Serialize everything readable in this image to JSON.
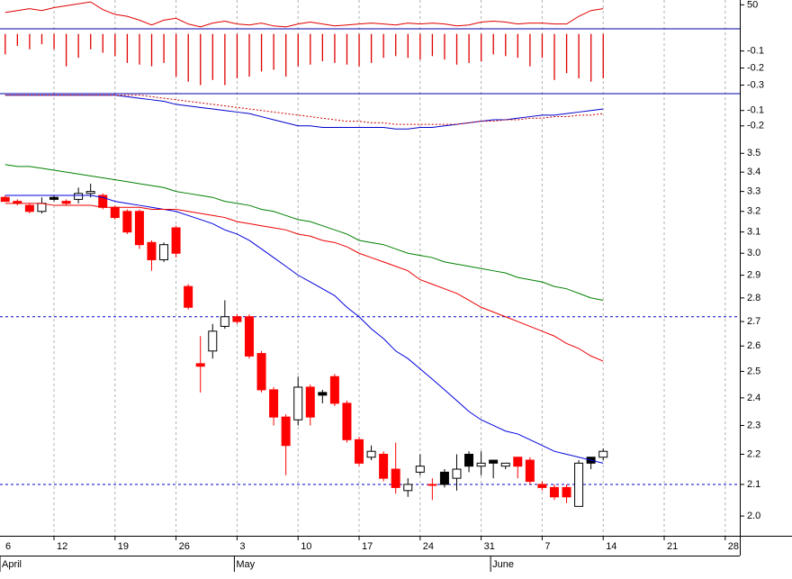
{
  "chart_data": [
    {
      "type": "line",
      "ylim": [
        25,
        55
      ],
      "yticks": [
        50
      ],
      "series": [
        {
          "color": "#e00000",
          "values": [
            null,
            42,
            44,
            46,
            44,
            47,
            49,
            51,
            53,
            45,
            40,
            38,
            34,
            29,
            34,
            36,
            30,
            27,
            31,
            33,
            30,
            29,
            31,
            28,
            27,
            30,
            32,
            30,
            28,
            29,
            30,
            31,
            30,
            29,
            31,
            30,
            31,
            30,
            28,
            29,
            32,
            33,
            32,
            30,
            31,
            31,
            30,
            30,
            38,
            44,
            46,
            null,
            null,
            null,
            null,
            null,
            null,
            null,
            null,
            null,
            null,
            null,
            null,
            null,
            null
          ]
        }
      ]
    },
    {
      "type": "bar",
      "ylim": [
        -0.35,
        0.03
      ],
      "yticks": [
        -0.1,
        -0.2,
        -0.3
      ],
      "color": "#e00000",
      "values": [
        null,
        -0.12,
        -0.07,
        -0.09,
        -0.06,
        -0.09,
        -0.19,
        -0.14,
        -0.09,
        -0.11,
        -0.13,
        -0.17,
        -0.18,
        -0.19,
        -0.17,
        -0.25,
        -0.28,
        -0.3,
        -0.27,
        -0.3,
        -0.26,
        -0.25,
        -0.22,
        -0.21,
        -0.25,
        -0.19,
        -0.18,
        -0.16,
        -0.17,
        -0.18,
        -0.19,
        -0.17,
        -0.14,
        -0.13,
        -0.14,
        -0.15,
        -0.13,
        -0.15,
        -0.18,
        -0.17,
        -0.16,
        -0.12,
        -0.13,
        -0.14,
        -0.19,
        -0.14,
        -0.27,
        -0.23,
        -0.26,
        -0.28,
        -0.26,
        null,
        null,
        null,
        null,
        null,
        null,
        null,
        null,
        null,
        null,
        null,
        null,
        null,
        null
      ]
    },
    {
      "type": "line",
      "ylim": [
        -0.26,
        0.01
      ],
      "yticks": [
        -0.1,
        -0.2
      ],
      "series": [
        {
          "color": "#0000cc",
          "values": [
            null,
            0,
            0,
            0,
            0,
            0,
            0,
            0,
            0,
            0,
            0,
            -0.01,
            -0.02,
            -0.03,
            -0.04,
            -0.06,
            -0.07,
            -0.08,
            -0.09,
            -0.1,
            -0.11,
            -0.12,
            -0.14,
            -0.16,
            -0.18,
            -0.2,
            -0.2,
            -0.21,
            -0.21,
            -0.21,
            -0.21,
            -0.21,
            -0.21,
            -0.22,
            -0.22,
            -0.21,
            -0.21,
            -0.2,
            -0.19,
            -0.18,
            -0.17,
            -0.16,
            -0.16,
            -0.15,
            -0.14,
            -0.13,
            -0.13,
            -0.12,
            -0.11,
            -0.1,
            -0.09,
            null,
            null,
            null,
            null,
            null,
            null,
            null,
            null,
            null,
            null,
            null,
            null,
            null,
            null
          ]
        },
        {
          "color": "#cc0000",
          "dashed": true,
          "values": [
            null,
            0,
            0,
            0,
            0,
            0,
            0,
            0,
            0,
            0,
            0,
            0,
            0,
            -0.01,
            -0.02,
            -0.03,
            -0.04,
            -0.05,
            -0.06,
            -0.07,
            -0.08,
            -0.09,
            -0.1,
            -0.11,
            -0.12,
            -0.13,
            -0.14,
            -0.15,
            -0.16,
            -0.17,
            -0.17,
            -0.18,
            -0.18,
            -0.19,
            -0.19,
            -0.19,
            -0.19,
            -0.19,
            -0.19,
            -0.18,
            -0.17,
            -0.17,
            -0.16,
            -0.16,
            -0.15,
            -0.15,
            -0.14,
            -0.14,
            -0.13,
            -0.13,
            -0.12,
            null,
            null,
            null,
            null,
            null,
            null,
            null,
            null,
            null,
            null,
            null,
            null,
            null,
            null
          ]
        }
      ]
    },
    {
      "type": "candlestick",
      "log_scale": true,
      "grid": true,
      "ylim": [
        1.94,
        3.6
      ],
      "yticks": [
        3.5,
        3.4,
        3.3,
        3.2,
        3.1,
        {
          "value": 3,
          "label": "3.0"
        },
        2.9,
        2.8,
        2.7,
        2.6,
        2.5,
        2.4,
        2.3,
        2.2,
        2.1,
        {
          "value": 2,
          "label": "2.0"
        }
      ],
      "reference_lines": [
        2.72,
        2.1
      ],
      "reference_color": "#0000cc",
      "categories": [
        "6",
        null,
        null,
        null,
        null,
        "12",
        null,
        null,
        null,
        null,
        "19",
        null,
        null,
        null,
        null,
        "26",
        null,
        null,
        null,
        null,
        "3",
        null,
        null,
        null,
        null,
        "10",
        null,
        null,
        null,
        null,
        "17",
        null,
        null,
        null,
        null,
        "24",
        null,
        null,
        null,
        null,
        "31",
        null,
        null,
        null,
        null,
        "7",
        null,
        null,
        null,
        null,
        "14",
        null,
        null,
        null,
        null,
        "21",
        null,
        null,
        null,
        null,
        "28",
        null,
        null,
        null,
        null
      ],
      "month_labels": [
        "April",
        null,
        null,
        null,
        null,
        null,
        null,
        null,
        null,
        null,
        null,
        null,
        null,
        null,
        null,
        null,
        null,
        null,
        null,
        null,
        "May",
        null,
        null,
        null,
        null,
        null,
        null,
        null,
        null,
        null,
        null,
        null,
        null,
        null,
        null,
        null,
        null,
        null,
        null,
        null,
        null,
        "June",
        null,
        null,
        null,
        null,
        null,
        null,
        null,
        null,
        null,
        null,
        null,
        null,
        null,
        null,
        null,
        null,
        null,
        null,
        null,
        null,
        null,
        null,
        null
      ],
      "open": [
        null,
        3.27,
        3.25,
        3.23,
        3.2,
        3.27,
        3.25,
        3.26,
        3.29,
        3.28,
        3.22,
        3.2,
        3.2,
        3.05,
        2.97,
        3.12,
        2.85,
        2.53,
        2.58,
        2.68,
        2.72,
        2.72,
        2.57,
        2.43,
        2.33,
        2.32,
        2.44,
        2.41,
        2.48,
        2.38,
        2.25,
        2.19,
        2.2,
        2.15,
        2.08,
        2.14,
        2.1,
        2.14,
        2.12,
        2.2,
        2.16,
        2.18,
        2.16,
        2.19,
        2.18,
        2.1,
        2.09,
        2.09,
        2.03,
        2.19,
        2.19,
        null,
        null,
        null,
        null,
        null,
        null,
        null,
        null,
        null,
        null,
        null,
        null,
        null,
        null
      ],
      "high": [
        null,
        3.28,
        3.26,
        3.24,
        3.27,
        3.28,
        3.26,
        3.32,
        3.34,
        3.29,
        3.23,
        3.21,
        3.21,
        3.06,
        3.05,
        3.13,
        2.86,
        2.64,
        2.69,
        2.79,
        2.73,
        2.73,
        2.58,
        2.44,
        2.34,
        2.48,
        2.45,
        2.43,
        2.49,
        2.39,
        2.26,
        2.23,
        2.21,
        2.24,
        2.12,
        2.2,
        2.12,
        2.15,
        2.2,
        2.21,
        2.21,
        2.18,
        2.17,
        2.19,
        2.19,
        2.11,
        2.1,
        2.1,
        2.18,
        2.19,
        2.22,
        null,
        null,
        null,
        null,
        null,
        null,
        null,
        null,
        null,
        null,
        null,
        null,
        null,
        null
      ],
      "low": [
        null,
        3.25,
        3.23,
        3.19,
        3.19,
        3.25,
        3.23,
        3.24,
        3.27,
        3.21,
        3.16,
        3.09,
        3.02,
        2.92,
        2.96,
        2.98,
        2.75,
        2.42,
        2.55,
        2.67,
        2.69,
        2.55,
        2.42,
        2.3,
        2.13,
        2.3,
        2.3,
        2.38,
        2.37,
        2.24,
        2.16,
        2.18,
        2.11,
        2.07,
        2.06,
        2.13,
        2.05,
        2.09,
        2.08,
        2.14,
        2.13,
        2.12,
        2.15,
        2.12,
        2.1,
        2.08,
        2.05,
        2.04,
        2.03,
        2.15,
        2.18,
        null,
        null,
        null,
        null,
        null,
        null,
        null,
        null,
        null,
        null,
        null,
        null,
        null,
        null
      ],
      "close": [
        null,
        3.25,
        3.24,
        3.2,
        3.24,
        3.26,
        3.24,
        3.29,
        3.3,
        3.22,
        3.17,
        3.1,
        3.04,
        2.97,
        3.04,
        3.0,
        2.76,
        2.52,
        2.66,
        2.72,
        2.7,
        2.56,
        2.43,
        2.33,
        2.23,
        2.44,
        2.33,
        2.42,
        2.38,
        2.25,
        2.17,
        2.21,
        2.12,
        2.09,
        2.1,
        2.16,
        2.1,
        2.1,
        2.15,
        2.16,
        2.17,
        2.17,
        2.17,
        2.16,
        2.11,
        2.09,
        2.06,
        2.06,
        2.17,
        2.17,
        2.21,
        null,
        null,
        null,
        null,
        null,
        null,
        null,
        null,
        null,
        null,
        null,
        null,
        null,
        null
      ],
      "candle_colors": [
        null,
        "#ff0000",
        "#ff0000",
        "#ff0000",
        "#ffffff",
        "#000000",
        "#ff0000",
        "#ffffff",
        "#ffffff",
        "#ff0000",
        "#ff0000",
        "#ff0000",
        "#ff0000",
        "#ff0000",
        "#ffffff",
        "#ff0000",
        "#ff0000",
        "#ff0000",
        "#ffffff",
        "#ffffff",
        "#ff0000",
        "#ff0000",
        "#ff0000",
        "#ff0000",
        "#ff0000",
        "#ffffff",
        "#ff0000",
        "#000000",
        "#ff0000",
        "#ff0000",
        "#ff0000",
        "#ffffff",
        "#ff0000",
        "#ff0000",
        "#ffffff",
        "#ffffff",
        "#ff0000",
        "#000000",
        "#ffffff",
        "#000000",
        "#ffffff",
        "#000000",
        "#ffffff",
        "#ff0000",
        "#ff0000",
        "#ff0000",
        "#ff0000",
        "#ff0000",
        "#ffffff",
        "#000000",
        "#ffffff",
        null,
        null,
        null,
        null,
        null,
        null,
        null,
        null,
        null,
        null,
        null,
        null,
        null,
        null
      ],
      "series": [
        {
          "color": "#0000dd",
          "values": [
            null,
            3.28,
            3.28,
            3.28,
            3.28,
            3.28,
            3.28,
            3.28,
            3.28,
            3.27,
            3.25,
            3.24,
            3.23,
            3.22,
            3.21,
            3.2,
            3.18,
            3.16,
            3.14,
            3.11,
            3.09,
            3.06,
            3.02,
            2.98,
            2.94,
            2.9,
            2.87,
            2.84,
            2.81,
            2.76,
            2.72,
            2.67,
            2.63,
            2.58,
            2.55,
            2.51,
            2.47,
            2.43,
            2.39,
            2.35,
            2.32,
            2.3,
            2.28,
            2.27,
            2.25,
            2.23,
            2.21,
            2.2,
            2.19,
            2.18,
            2.17,
            null,
            null,
            null,
            null,
            null,
            null,
            null,
            null,
            null,
            null,
            null,
            null,
            null,
            null
          ]
        },
        {
          "color": "#ee0000",
          "values": [
            null,
            3.24,
            3.24,
            3.24,
            3.24,
            3.23,
            3.23,
            3.23,
            3.23,
            3.22,
            3.22,
            3.22,
            3.22,
            3.21,
            3.21,
            3.21,
            3.2,
            3.19,
            3.18,
            3.17,
            3.15,
            3.14,
            3.13,
            3.12,
            3.11,
            3.09,
            3.08,
            3.06,
            3.05,
            3.03,
            3.0,
            2.98,
            2.96,
            2.94,
            2.92,
            2.88,
            2.86,
            2.84,
            2.82,
            2.79,
            2.76,
            2.74,
            2.72,
            2.7,
            2.68,
            2.66,
            2.64,
            2.61,
            2.59,
            2.56,
            2.54,
            null,
            null,
            null,
            null,
            null,
            null,
            null,
            null,
            null,
            null,
            null,
            null,
            null,
            null
          ]
        },
        {
          "color": "#008000",
          "values": [
            null,
            3.44,
            3.43,
            3.43,
            3.42,
            3.41,
            3.4,
            3.39,
            3.38,
            3.37,
            3.36,
            3.35,
            3.34,
            3.33,
            3.32,
            3.3,
            3.29,
            3.28,
            3.27,
            3.25,
            3.24,
            3.23,
            3.21,
            3.2,
            3.18,
            3.16,
            3.15,
            3.13,
            3.11,
            3.09,
            3.06,
            3.05,
            3.04,
            3.02,
            3.0,
            2.99,
            2.98,
            2.96,
            2.95,
            2.94,
            2.93,
            2.92,
            2.91,
            2.89,
            2.88,
            2.87,
            2.85,
            2.84,
            2.82,
            2.8,
            2.79,
            null,
            null,
            null,
            null,
            null,
            null,
            null,
            null,
            null,
            null,
            null,
            null,
            null,
            null
          ]
        }
      ]
    }
  ]
}
